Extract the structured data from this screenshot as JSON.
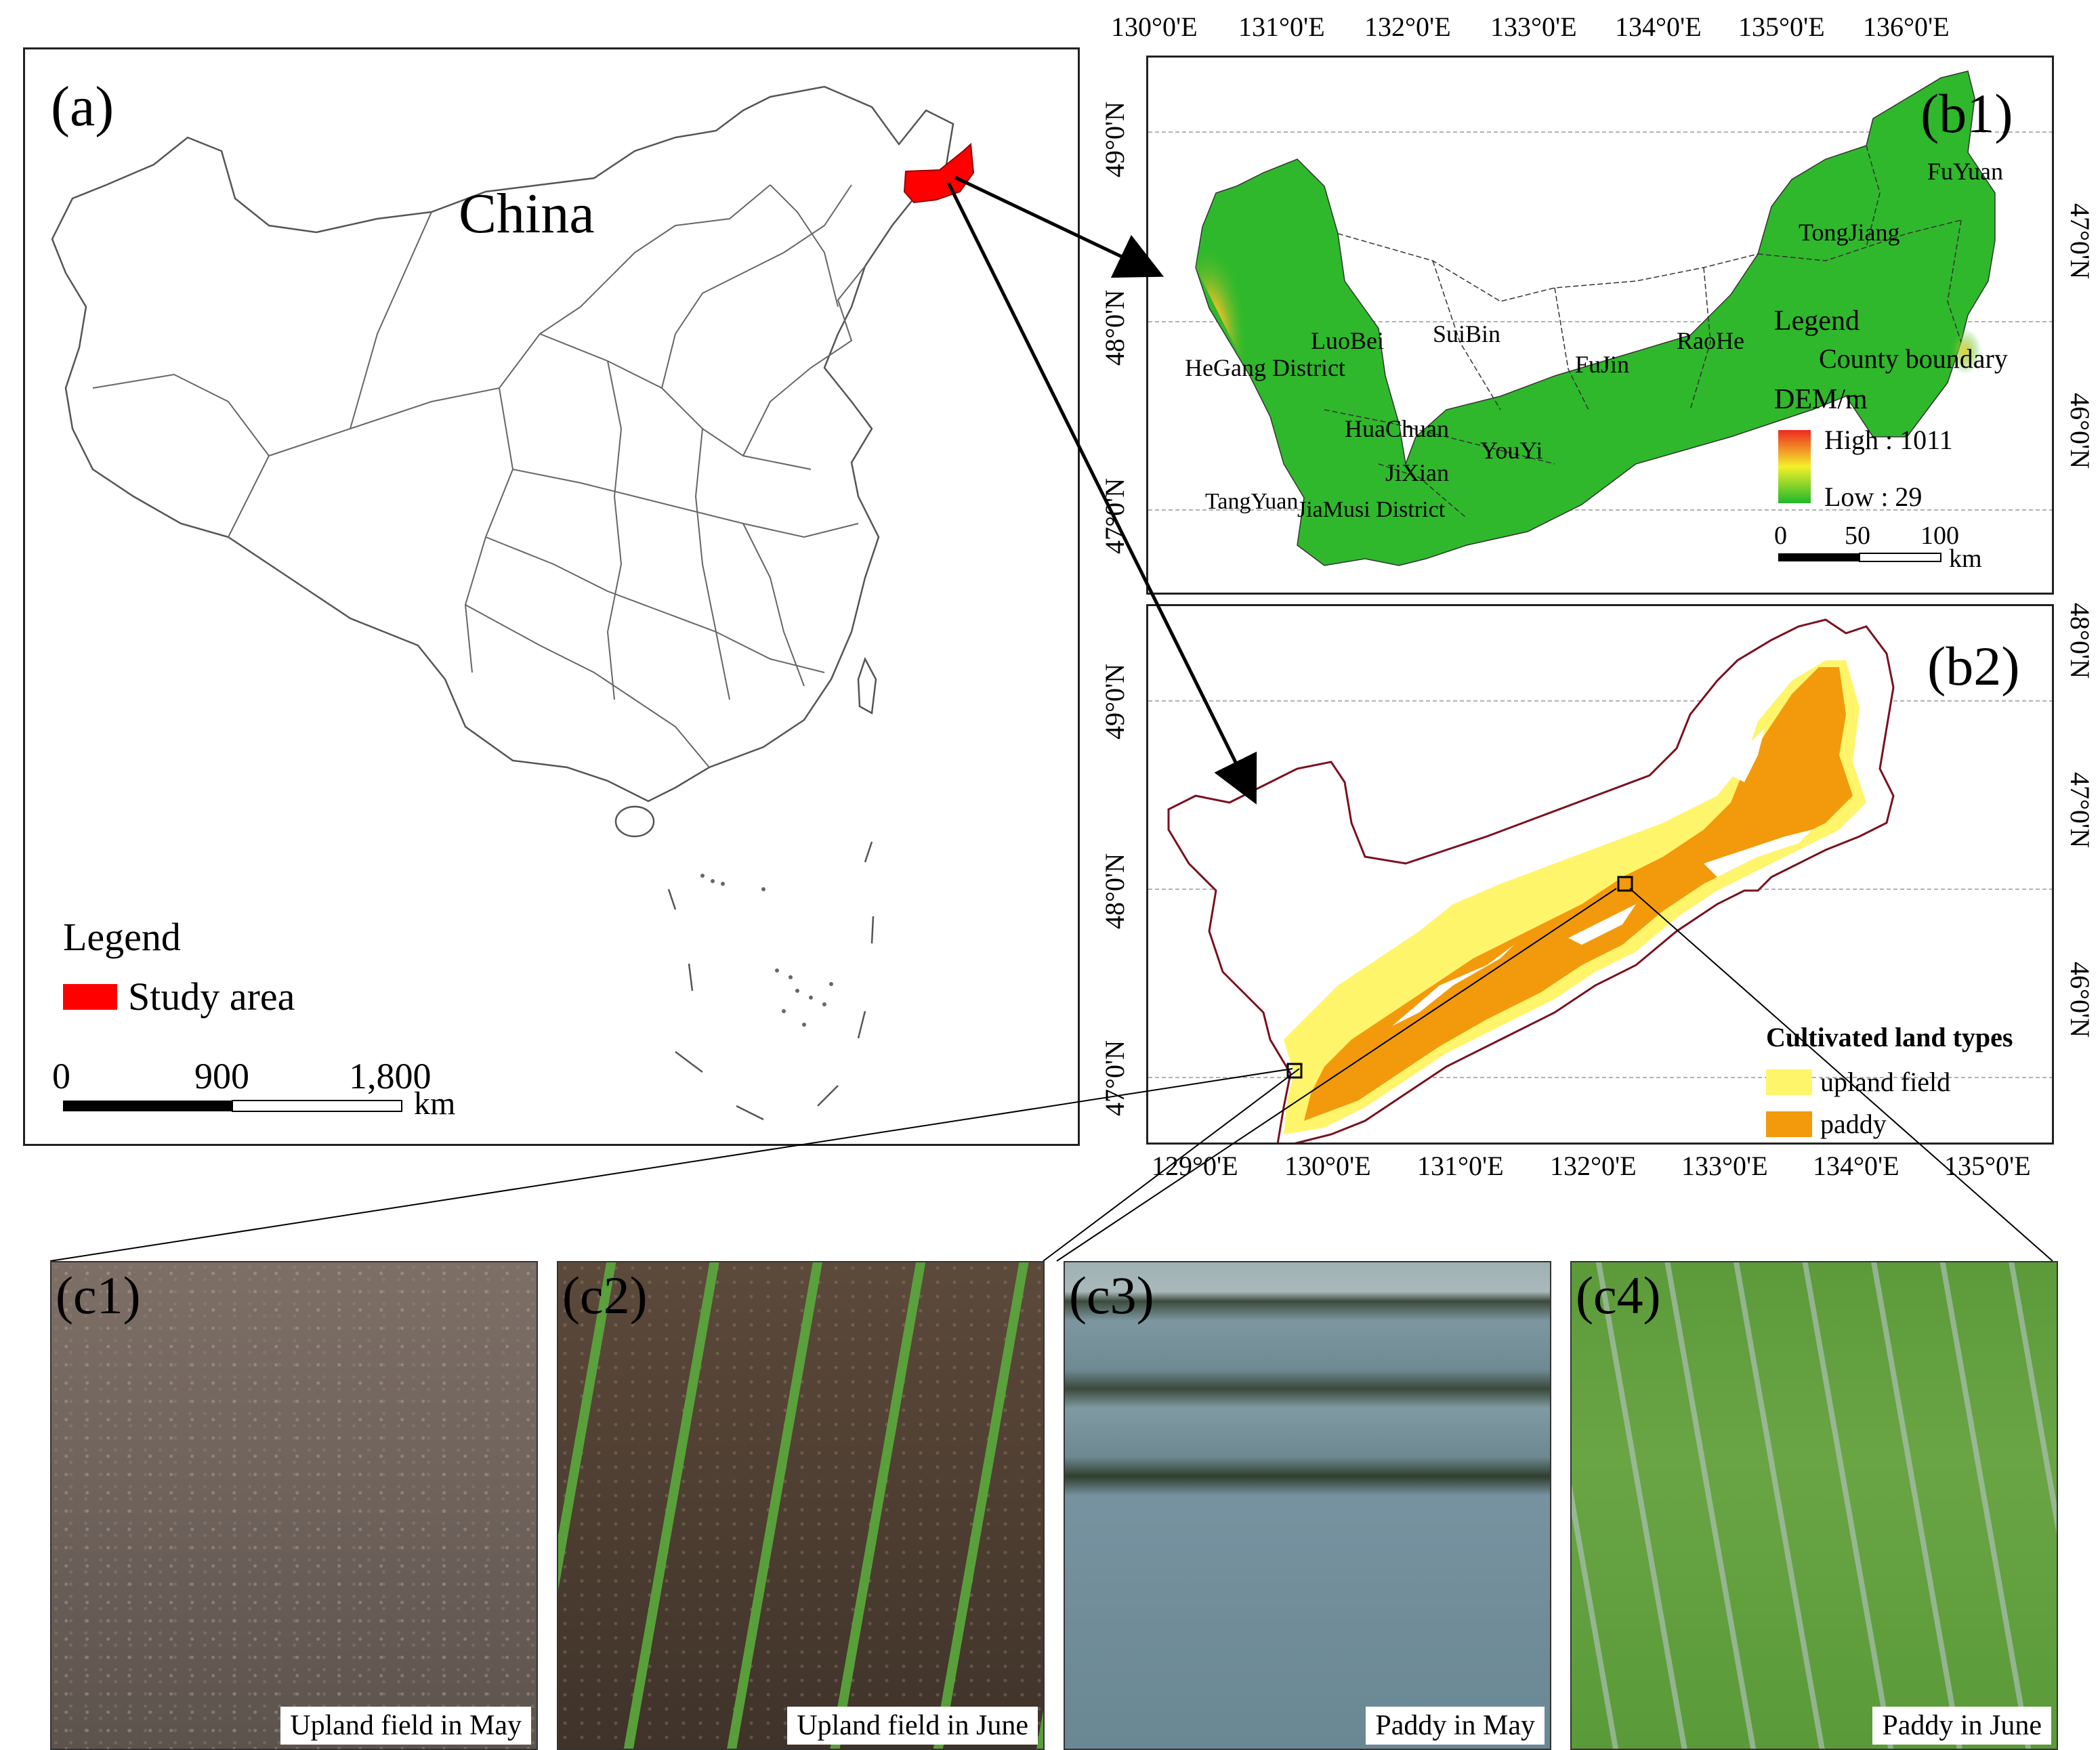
{
  "panel_a": {
    "label": "(a)",
    "country": "China",
    "legend_title": "Legend",
    "legend_item": "Study area",
    "legend_color": "#ff0000",
    "scale": {
      "ticks": [
        "0",
        "900",
        "1,800"
      ],
      "unit": "km"
    }
  },
  "panel_b1": {
    "label": "(b1)",
    "top_ticks": [
      "130°0'E",
      "131°0'E",
      "132°0'E",
      "133°0'E",
      "134°0'E",
      "135°0'E",
      "136°0'E"
    ],
    "left_ticks": [
      "49°0'N",
      "48°0'N",
      "47°0'N"
    ],
    "right_ticks": [
      "47°0'N",
      "46°0'N"
    ],
    "counties": [
      "FuYuan",
      "TongJiang",
      "LuoBei",
      "SuiBin",
      "FuJin",
      "RaoHe",
      "HeGang District",
      "HuaChuan",
      "YouYi",
      "JiXian",
      "TangYuan",
      "JiaMusi District"
    ],
    "legend": {
      "title": "Legend",
      "boundary": "County boundary",
      "dem_title": "DEM/m",
      "high": "High : 1011",
      "low": "Low : 29",
      "scale_ticks": [
        "0",
        "50",
        "100"
      ],
      "scale_unit": "km"
    }
  },
  "panel_b2": {
    "label": "(b2)",
    "left_ticks": [
      "49°0'N",
      "48°0'N",
      "47°0'N"
    ],
    "right_ticks": [
      "48°0'N",
      "47°0'N",
      "46°0'N"
    ],
    "bottom_ticks": [
      "129°0'E",
      "130°0'E",
      "131°0'E",
      "132°0'E",
      "133°0'E",
      "134°0'E",
      "135°0'E"
    ],
    "legend": {
      "title": "Cultivated land types",
      "items": [
        {
          "label": "upland field",
          "color": "#fff56b"
        },
        {
          "label": "paddy",
          "color": "#f29a0c"
        }
      ]
    }
  },
  "photos": [
    {
      "label": "(c1)",
      "caption": "Upland field in May"
    },
    {
      "label": "(c2)",
      "caption": "Upland field in June"
    },
    {
      "label": "(c3)",
      "caption": "Paddy in May"
    },
    {
      "label": "(c4)",
      "caption": "Paddy in June"
    }
  ]
}
